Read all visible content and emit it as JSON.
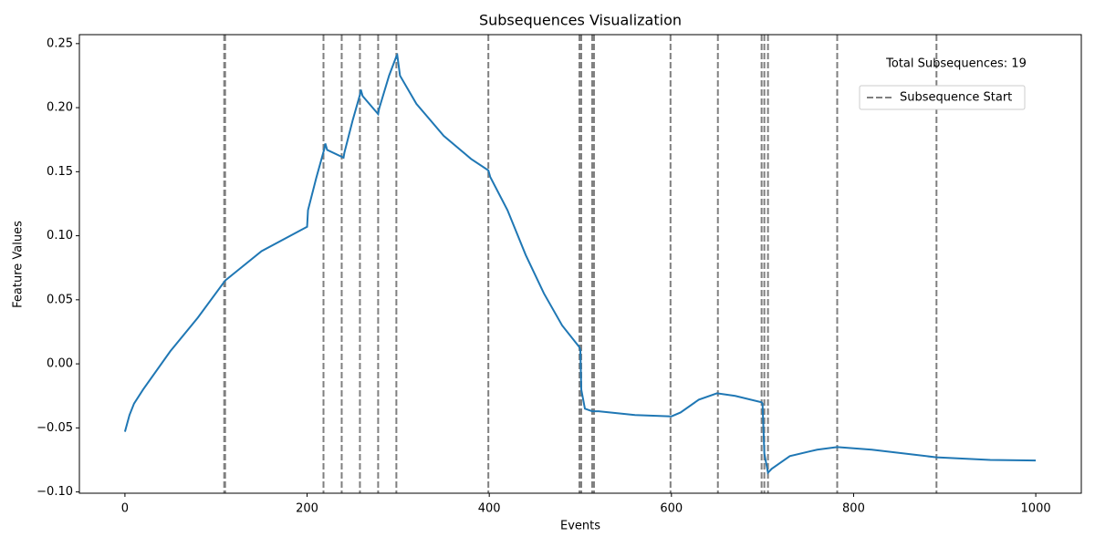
{
  "chart_data": {
    "type": "line",
    "title": "Subsequences Visualization",
    "xlabel": "Events",
    "ylabel": "Feature Values",
    "annotation": "Total Subsequences: 19",
    "series": [
      {
        "color": "#1f77b4",
        "x": [
          0,
          5,
          10,
          20,
          50,
          80,
          110,
          150,
          200,
          201,
          210,
          219,
          220,
          222,
          240,
          241,
          250,
          258,
          259,
          261,
          278,
          279,
          290,
          298,
          299,
          302,
          320,
          350,
          380,
          399,
          401,
          420,
          440,
          460,
          480,
          499,
          500,
          501,
          505,
          513,
          520,
          560,
          600,
          610,
          630,
          650,
          670,
          699,
          700,
          702,
          706,
          710,
          730,
          760,
          782,
          820,
          891,
          950,
          1000
        ],
        "values": [
          -0.053,
          -0.04,
          -0.031,
          -0.02,
          0.01,
          0.036,
          0.065,
          0.088,
          0.107,
          0.12,
          0.145,
          0.168,
          0.172,
          0.167,
          0.161,
          0.165,
          0.19,
          0.21,
          0.214,
          0.209,
          0.195,
          0.199,
          0.225,
          0.24,
          0.241,
          0.225,
          0.203,
          0.178,
          0.16,
          0.151,
          0.146,
          0.12,
          0.085,
          0.055,
          0.03,
          0.013,
          0.011,
          -0.02,
          -0.035,
          -0.037,
          -0.037,
          -0.04,
          -0.041,
          -0.038,
          -0.028,
          -0.023,
          -0.025,
          -0.03,
          -0.031,
          -0.07,
          -0.085,
          -0.082,
          -0.072,
          -0.067,
          -0.065,
          -0.067,
          -0.073,
          -0.075,
          -0.0755
        ]
      }
    ],
    "vlines": {
      "name": "Subsequence Start",
      "color": "gray",
      "x": [
        109,
        110,
        218,
        238,
        258,
        278,
        298,
        399,
        499,
        501,
        513,
        515,
        599,
        651,
        699,
        702,
        706,
        782,
        891
      ]
    },
    "xlim": [
      -50,
      1050
    ],
    "ylim": [
      -0.101,
      0.257
    ],
    "xticks": [
      0,
      200,
      400,
      600,
      800,
      1000
    ],
    "yticks": [
      {
        "value": -0.1,
        "label": "−0.10"
      },
      {
        "value": -0.05,
        "label": "−0.05"
      },
      {
        "value": 0,
        "label": "0.00"
      },
      {
        "value": 0.05,
        "label": "0.05"
      },
      {
        "value": 0.1,
        "label": "0.10"
      },
      {
        "value": 0.15,
        "label": "0.15"
      },
      {
        "value": 0.2,
        "label": "0.20"
      },
      {
        "value": 0.25,
        "label": "0.25"
      }
    ],
    "legend": "upper right"
  }
}
